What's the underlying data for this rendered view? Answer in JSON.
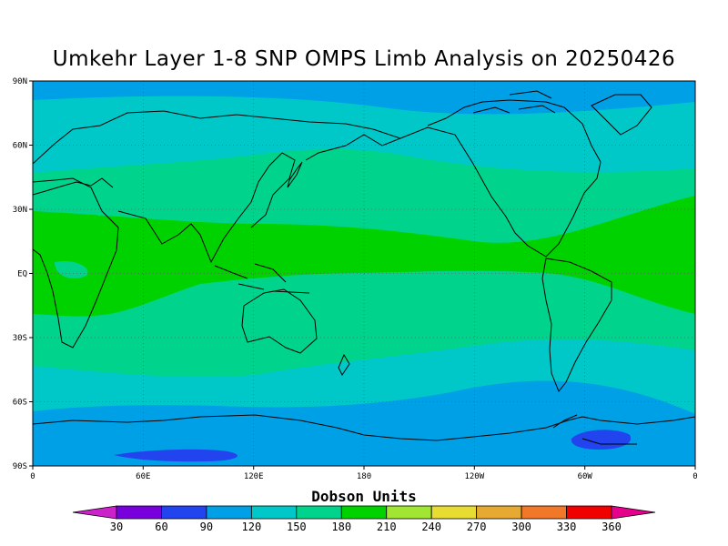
{
  "title": "Umkehr Layer 1-8 SNP OMPS Limb Analysis on 20250426",
  "lat_labels": [
    "90N",
    "60N",
    "30N",
    "EQ",
    "30S",
    "60S",
    "90S"
  ],
  "lon_labels": [
    "0",
    "60E",
    "120E",
    "180",
    "120W",
    "60W",
    "0"
  ],
  "colorbar": {
    "title": "Dobson Units",
    "levels": [
      "30",
      "60",
      "90",
      "120",
      "150",
      "180",
      "210",
      "240",
      "270",
      "300",
      "330",
      "360"
    ],
    "colors": [
      "#cc22cc",
      "#7700dd",
      "#2244ee",
      "#00a0e6",
      "#00c8c8",
      "#00d48c",
      "#00d200",
      "#a0e632",
      "#e6dc32",
      "#e6aa32",
      "#f07828",
      "#f00000",
      "#e6008c"
    ]
  },
  "field_colors": {
    "band_90_120": "#00a0e6",
    "band_120_150": "#00c8c8",
    "band_150_180": "#00d48c",
    "band_180_210": "#00d200",
    "band_60_90": "#2244ee"
  }
}
